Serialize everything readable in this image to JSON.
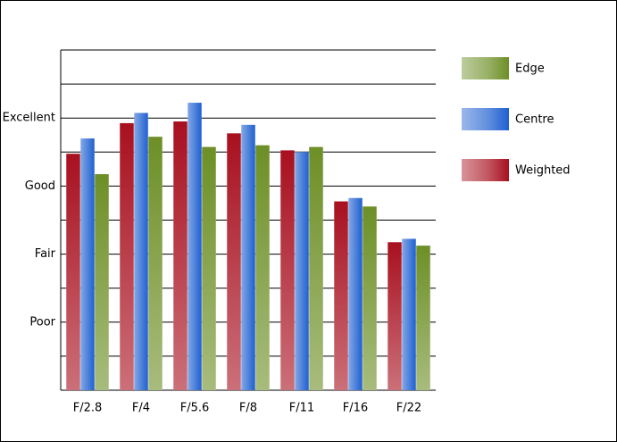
{
  "chart_data": {
    "type": "bar",
    "categories": [
      "F/2.8",
      "F/4",
      "F/5.6",
      "F/8",
      "F/11",
      "F/16",
      "F/22"
    ],
    "series": [
      {
        "name": "Weighted",
        "color": "#a8101f",
        "values": [
          6.95,
          7.85,
          7.9,
          7.55,
          7.05,
          5.55,
          4.35
        ]
      },
      {
        "name": "Centre",
        "color": "#1f60d0",
        "values": [
          7.4,
          8.15,
          8.45,
          7.8,
          7.0,
          5.65,
          4.45
        ]
      },
      {
        "name": "Edge",
        "color": "#6d8f26",
        "values": [
          6.35,
          7.45,
          7.15,
          7.2,
          7.15,
          5.4,
          4.25
        ]
      }
    ],
    "ylim": [
      0,
      10
    ],
    "yticks": [
      {
        "value": 2,
        "label": "Poor"
      },
      {
        "value": 4,
        "label": "Fair"
      },
      {
        "value": 6,
        "label": "Good"
      },
      {
        "value": 8,
        "label": "Excellent"
      }
    ],
    "grid_lines": [
      1,
      2,
      3,
      4,
      5,
      6,
      7,
      8,
      9,
      10
    ],
    "grid": true,
    "legend": "right",
    "legend_reversed": true
  }
}
